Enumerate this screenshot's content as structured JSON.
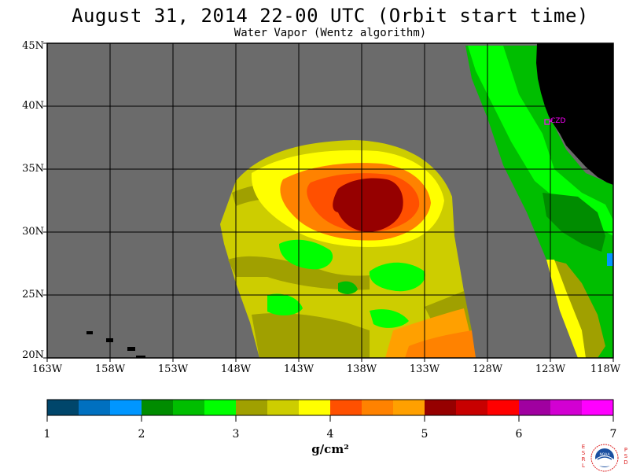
{
  "title": "August 31, 2014  22-00 UTC  (Orbit start time)",
  "subtitle": "Water Vapor (Wentz algorithm)",
  "map": {
    "lat_labels": [
      "45N",
      "40N",
      "35N",
      "30N",
      "25N",
      "20N"
    ],
    "lat_values": [
      45,
      40,
      35,
      30,
      25,
      20
    ],
    "lon_labels": [
      "163W",
      "158W",
      "153W",
      "148W",
      "143W",
      "138W",
      "133W",
      "128W",
      "123W",
      "118W"
    ],
    "lon_values": [
      -163,
      -158,
      -153,
      -148,
      -143,
      -138,
      -133,
      -128,
      -123,
      -118
    ],
    "station_label": "CZD",
    "colors": {
      "background": "#6b6b6b",
      "land": "#000000",
      "station": "#ff00ff"
    }
  },
  "colorbar": {
    "tick_labels": [
      "1",
      "2",
      "3",
      "4",
      "5",
      "6",
      "7"
    ],
    "min": 1,
    "max": 7,
    "unit": "g/cm²",
    "colors": [
      "#00466b",
      "#0070c0",
      "#0096ff",
      "#008c00",
      "#00be00",
      "#00ff00",
      "#a0a000",
      "#cdcd00",
      "#ffff00",
      "#ff5000",
      "#ff8200",
      "#ffa000",
      "#960000",
      "#c80000",
      "#ff0000",
      "#a000a0",
      "#d200d2",
      "#ff00ff"
    ]
  },
  "logo": {
    "left_letters": [
      "E",
      "S",
      "R",
      "L"
    ],
    "right_letters": [
      "P",
      "S",
      "D"
    ],
    "emblem_text": "NOAA"
  }
}
